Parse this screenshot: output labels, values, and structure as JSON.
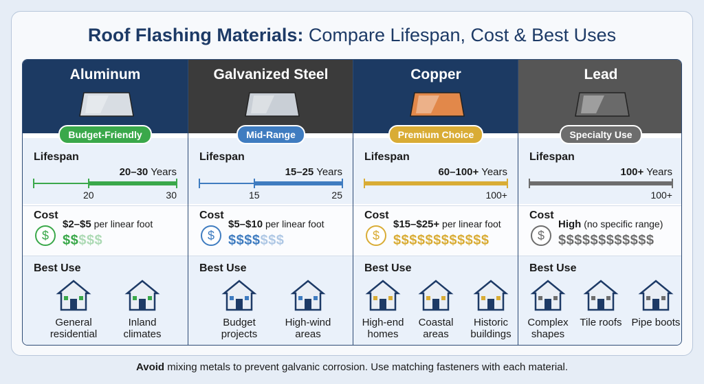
{
  "title": {
    "bold": "Roof Flashing Materials:",
    "rest": "Compare Lifespan, Cost & Best Uses"
  },
  "columns": [
    {
      "name": "Aluminum",
      "header_color": "#1c3a63",
      "accent_color": "#3aa84a",
      "badge": "Budget-Friendly",
      "lifespan": {
        "label": "Lifespan",
        "range": "20–30",
        "unit": "Years",
        "scale": [
          "20",
          "30"
        ]
      },
      "cost": {
        "label": "Cost",
        "icon": "$",
        "amount": "$2–$5",
        "unit": "per linear foot",
        "filled": "$$",
        "empty": "$$$"
      },
      "best_use": {
        "label": "Best Use",
        "items": [
          "General residential",
          "Inland climates"
        ]
      }
    },
    {
      "name": "Galvanized Steel",
      "header_color": "#3b3b3b",
      "accent_color": "#3f7cc0",
      "badge": "Mid-Range",
      "lifespan": {
        "label": "Lifespan",
        "range": "15–25",
        "unit": "Years",
        "scale": [
          "15",
          "25"
        ]
      },
      "cost": {
        "label": "Cost",
        "icon": "$",
        "amount": "$5–$10",
        "unit": "per linear foot",
        "filled": "$$$$",
        "empty": "$$$"
      },
      "best_use": {
        "label": "Best Use",
        "items": [
          "Budget projects",
          "High-wind areas"
        ]
      }
    },
    {
      "name": "Copper",
      "header_color": "#1c3a63",
      "accent_color": "#d9ac35",
      "badge": "Premium Choice",
      "lifespan": {
        "label": "Lifespan",
        "range": "60–100+",
        "unit": "Years",
        "scale": [
          "100+"
        ]
      },
      "cost": {
        "label": "Cost",
        "icon": "$",
        "amount": "$15–$25+",
        "unit": "per linear foot",
        "filled": "$$$$$$$$$$$$"
      },
      "best_use": {
        "label": "Best Use",
        "items": [
          "High-end homes",
          "Coastal areas",
          "Historic buildings"
        ]
      }
    },
    {
      "name": "Lead",
      "header_color": "#565656",
      "accent_color": "#6d6d6d",
      "badge": "Specialty Use",
      "lifespan": {
        "label": "Lifespan",
        "range": "100+",
        "unit": "Years",
        "scale": [
          "100+"
        ]
      },
      "cost": {
        "label": "Cost",
        "icon": "$",
        "amount": "High",
        "unit": "(no specific range)",
        "filled": "$$$$$$$$$$$$"
      },
      "best_use": {
        "label": "Best Use",
        "items": [
          "Complex shapes",
          "Tile roofs",
          "Pipe boots"
        ]
      }
    }
  ],
  "footer": {
    "bold": "Avoid",
    "rest": "mixing metals to prevent galvanic corrosion. Use matching fasteners with each material."
  }
}
